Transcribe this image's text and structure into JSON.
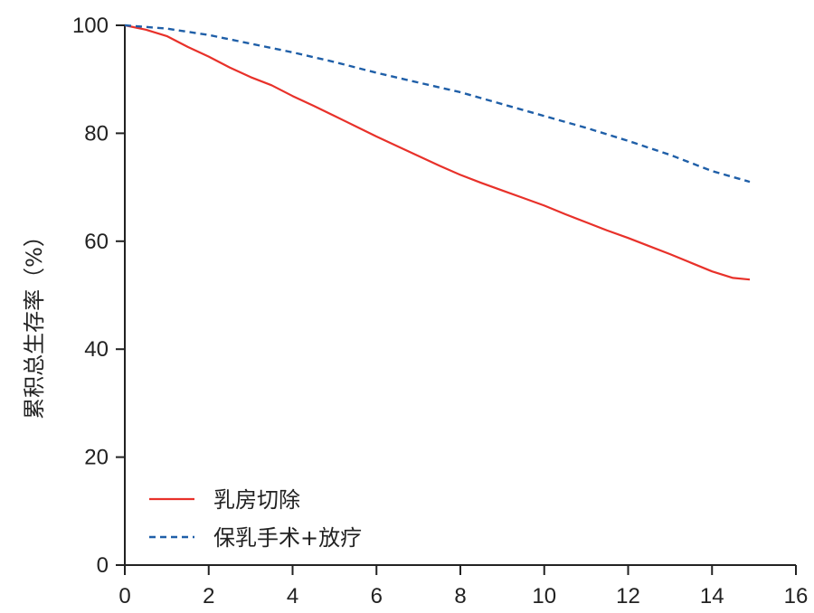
{
  "chart_data": {
    "type": "line",
    "title": "",
    "xlabel": "",
    "ylabel": "累积总生存率（%）",
    "xlim": [
      0,
      16
    ],
    "ylim": [
      0,
      100
    ],
    "x_ticks": [
      0,
      2,
      4,
      6,
      8,
      10,
      12,
      14,
      16
    ],
    "y_ticks": [
      0,
      20,
      40,
      60,
      80,
      100
    ],
    "x_tick_labels": [
      "0",
      "2",
      "4",
      "6",
      "8",
      "10",
      "12",
      "14",
      "16"
    ],
    "y_tick_labels": [
      "0",
      "20",
      "40",
      "60",
      "80",
      "100"
    ],
    "grid": false,
    "legend_position": "bottom-left",
    "series": [
      {
        "name": "乳房切除",
        "color": "#e8312a",
        "style": "solid",
        "x": [
          0,
          0.5,
          1,
          1.5,
          2,
          2.5,
          3,
          3.5,
          4,
          4.5,
          5,
          5.5,
          6,
          6.5,
          7,
          7.5,
          8,
          8.5,
          9,
          9.5,
          10,
          10.5,
          11,
          11.5,
          12,
          12.5,
          13,
          13.5,
          14,
          14.5,
          14.9
        ],
        "y": [
          100,
          99.2,
          98,
          96,
          94.2,
          92.2,
          90.4,
          88.9,
          86.9,
          85.1,
          83.2,
          81.3,
          79.4,
          77.6,
          75.8,
          74.0,
          72.3,
          70.8,
          69.4,
          68.0,
          66.6,
          65.0,
          63.5,
          62.0,
          60.6,
          59.1,
          57.6,
          56.0,
          54.4,
          53.2,
          52.9
        ]
      },
      {
        "name": "保乳手术+放疗",
        "color": "#1f5fa8",
        "style": "dashed",
        "x": [
          0,
          1,
          2,
          3,
          4,
          5,
          6,
          7,
          8,
          9,
          10,
          11,
          12,
          13,
          14,
          14.9
        ],
        "y": [
          100,
          99.4,
          98.2,
          96.6,
          95.0,
          93.2,
          91.2,
          89.4,
          87.6,
          85.4,
          83.2,
          81.0,
          78.6,
          76.0,
          73.0,
          71.0
        ]
      }
    ]
  }
}
